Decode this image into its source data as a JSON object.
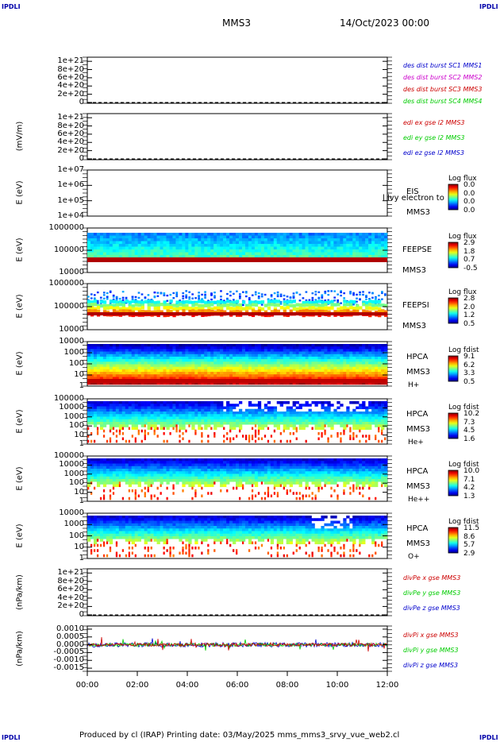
{
  "corners": {
    "tl": "IPDLI",
    "tr": "IPDLI",
    "bl": "IPDLI",
    "br": "IPDLI"
  },
  "header": {
    "spacecraft": "MMS3",
    "date": "14/Oct/2023 00:00"
  },
  "footer": {
    "text": "Produced by cl (IRAP)   Printing date: 03/May/2025   mms_mms3_srvy_vue_web2.cl"
  },
  "colors": {
    "blue": "#0000cc",
    "magenta": "#cc00cc",
    "red": "#cc0000",
    "green": "#00cc00"
  },
  "chart_data": [
    {
      "type": "line",
      "id": "p1",
      "ylabel": "",
      "ylim": [
        -2e+19,
        1.1e+21
      ],
      "yticks": [
        "1e+21",
        "8e+20",
        "6e+20",
        "4e+20",
        "2e+20",
        "0"
      ],
      "dashed_zero": true,
      "series": [
        {
          "name": "des dist burst SC1 MMS1",
          "color": "#0000cc",
          "values": []
        },
        {
          "name": "des dist burst SC2 MMS2",
          "color": "#cc00cc",
          "values": []
        },
        {
          "name": "des dist burst SC3 MMS3",
          "color": "#cc0000",
          "values": []
        },
        {
          "name": "des dist burst SC4 MMS4",
          "color": "#00cc00",
          "values": []
        }
      ]
    },
    {
      "type": "line",
      "id": "p2",
      "ylabel": "(mV/m)",
      "ylim": [
        -2e+19,
        1.1e+21
      ],
      "yticks": [
        "1e+21",
        "8e+20",
        "6e+20",
        "4e+20",
        "2e+20",
        "0"
      ],
      "dashed_zero": true,
      "series": [
        {
          "name": "edi ex gse l2 MMS3",
          "color": "#cc0000",
          "values": []
        },
        {
          "name": "edi ey gse l2 MMS3",
          "color": "#00cc00",
          "values": []
        },
        {
          "name": "edi ez gse l2 MMS3",
          "color": "#0000cc",
          "values": []
        }
      ]
    },
    {
      "type": "heatmap",
      "id": "p3",
      "ylabel": "E (eV)",
      "log": true,
      "yticks": [
        "1e+07",
        "1e+06",
        "1e+05",
        "1e+04"
      ],
      "instrument": [
        "EIS",
        "MMS3"
      ],
      "overlay_text": "l lvy electron to",
      "colorbar": {
        "title": "Log flux",
        "ticks": [
          "0.0",
          "0.0",
          "0.0",
          "0.0"
        ]
      },
      "fill": "none"
    },
    {
      "type": "heatmap",
      "id": "p4",
      "ylabel": "E (eV)",
      "log": true,
      "yticks": [
        "1000000",
        "100000",
        "10000"
      ],
      "instrument": [
        "FEEPSE",
        "MMS3"
      ],
      "colorbar": {
        "title": "Log flux",
        "ticks": [
          "2.9",
          "1.8",
          "0.7",
          "-0.5"
        ]
      },
      "fill": "feepse"
    },
    {
      "type": "heatmap",
      "id": "p5",
      "ylabel": "E (eV)",
      "log": true,
      "yticks": [
        "1000000",
        "100000",
        "10000"
      ],
      "instrument": [
        "FEEPSI",
        "MMS3"
      ],
      "colorbar": {
        "title": "Log flux",
        "ticks": [
          "2.8",
          "2.0",
          "1.2",
          "0.5"
        ]
      },
      "fill": "feepsi"
    },
    {
      "type": "heatmap",
      "id": "p6",
      "ylabel": "E (eV)",
      "log": true,
      "yticks": [
        "10000",
        "1000",
        "100",
        "10",
        "1"
      ],
      "instrument": [
        "HPCA",
        "MMS3",
        "H+"
      ],
      "colorbar": {
        "title": "Log fdist",
        "ticks": [
          "9.1",
          "6.2",
          "3.3",
          "0.5"
        ]
      },
      "fill": "hpca_h"
    },
    {
      "type": "heatmap",
      "id": "p7",
      "ylabel": "E (eV)",
      "log": true,
      "yticks": [
        "100000",
        "10000",
        "1000",
        "100",
        "10",
        "1"
      ],
      "instrument": [
        "HPCA",
        "MMS3",
        "He+"
      ],
      "colorbar": {
        "title": "Log fdist",
        "ticks": [
          "10.2",
          "7.3",
          "4.5",
          "1.6"
        ]
      },
      "fill": "hpca_he"
    },
    {
      "type": "heatmap",
      "id": "p8",
      "ylabel": "E (eV)",
      "log": true,
      "yticks": [
        "100000",
        "10000",
        "1000",
        "100",
        "10",
        "1"
      ],
      "instrument": [
        "HPCA",
        "MMS3",
        "He++"
      ],
      "colorbar": {
        "title": "Log fdist",
        "ticks": [
          "10.0",
          "7.1",
          "4.2",
          "1.3"
        ]
      },
      "fill": "hpca_hepp"
    },
    {
      "type": "heatmap",
      "id": "p9",
      "ylabel": "E (eV)",
      "log": true,
      "yticks": [
        "10000",
        "1000",
        "100",
        "10",
        "1"
      ],
      "instrument": [
        "HPCA",
        "MMS3",
        "O+"
      ],
      "colorbar": {
        "title": "Log fdist",
        "ticks": [
          "11.5",
          "8.6",
          "5.7",
          "2.9"
        ]
      },
      "fill": "hpca_o"
    },
    {
      "type": "line",
      "id": "p10",
      "ylabel": "(nPa/km)",
      "ylim": [
        -2e+19,
        1.1e+21
      ],
      "yticks": [
        "1e+21",
        "8e+20",
        "6e+20",
        "4e+20",
        "2e+20",
        "0"
      ],
      "dashed_zero": true,
      "series": [
        {
          "name": "divPe x gse MMS3",
          "color": "#cc0000",
          "values": []
        },
        {
          "name": "divPe y gse MMS3",
          "color": "#00cc00",
          "values": []
        },
        {
          "name": "divPe z gse MMS3",
          "color": "#0000cc",
          "values": []
        }
      ]
    },
    {
      "type": "line",
      "id": "p11",
      "ylabel": "(nPa/km)",
      "ylim": [
        -0.0017,
        0.0012
      ],
      "yticks": [
        "0.0010",
        "0.0005",
        "0.0000",
        "-0.0005",
        "-0.0010",
        "-0.0015"
      ],
      "dashed_zero": false,
      "series": [
        {
          "name": "divPi x gse MMS3",
          "color": "#cc0000",
          "values": []
        },
        {
          "name": "divPi y gse MMS3",
          "color": "#00cc00",
          "values": []
        },
        {
          "name": "divPi z gse MMS3",
          "color": "#0000cc",
          "values": []
        }
      ]
    }
  ],
  "xaxis": {
    "ticks": [
      "00:00",
      "02:00",
      "04:00",
      "06:00",
      "08:00",
      "10:00",
      "12:00"
    ]
  }
}
